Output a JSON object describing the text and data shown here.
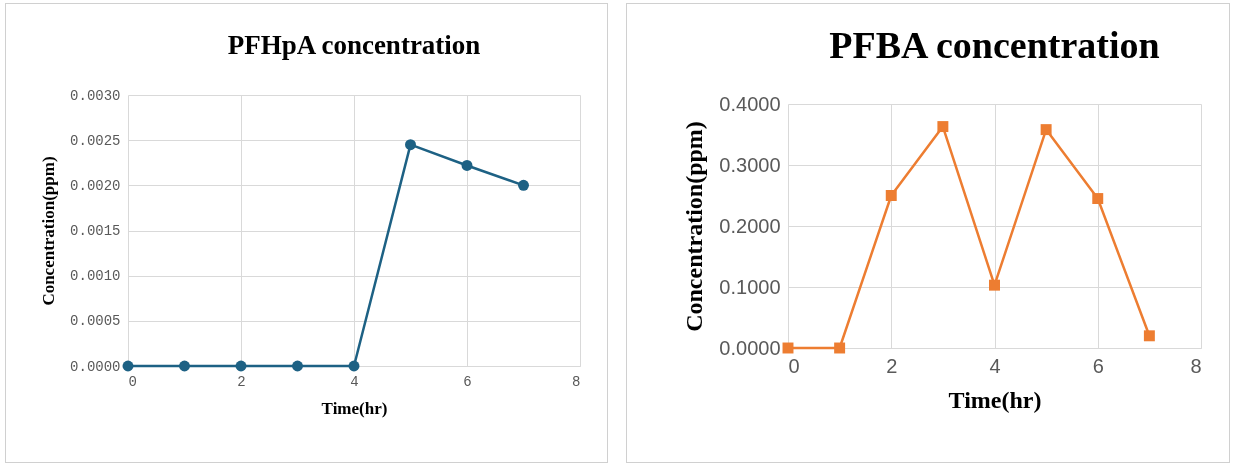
{
  "chart_data": [
    {
      "type": "line",
      "title": "PFHpA concentration",
      "xlabel": "Time(hr)",
      "ylabel": "Concentration(ppm)",
      "x": [
        0,
        1,
        2,
        3,
        4,
        5,
        6,
        7
      ],
      "series": [
        {
          "color": "#1d6184",
          "values": [
            0,
            0,
            0,
            0,
            0,
            0.00245,
            0.00222,
            0.002
          ]
        }
      ],
      "xlim": [
        0,
        8
      ],
      "xticks": [
        0,
        2,
        4,
        6,
        8
      ],
      "ylim": [
        0,
        0.003
      ],
      "yticks": [
        {
          "value": 0,
          "label": "0.0000"
        },
        {
          "value": 0.0005,
          "label": "0.0005"
        },
        {
          "value": 0.001,
          "label": "0.0010"
        },
        {
          "value": 0.0015,
          "label": "0.0015"
        },
        {
          "value": 0.002,
          "label": "0.0020"
        },
        {
          "value": 0.0025,
          "label": "0.0025"
        },
        {
          "value": 0.003,
          "label": "0.0030"
        }
      ],
      "grid": true,
      "marker": "circle",
      "line_style": "solid"
    },
    {
      "type": "line",
      "title": "PFBA concentration",
      "xlabel": "Time(hr)",
      "ylabel": "Concentration(ppm)",
      "x": [
        0,
        1,
        2,
        3,
        4,
        5,
        6,
        7
      ],
      "series": [
        {
          "color": "#ed7d31",
          "values": [
            0,
            0,
            0.25,
            0.363,
            0.103,
            0.358,
            0.245,
            0.02
          ]
        }
      ],
      "xlim": [
        0,
        8
      ],
      "xticks": [
        0,
        2,
        4,
        6,
        8
      ],
      "ylim": [
        0,
        0.4
      ],
      "yticks": [
        {
          "value": 0,
          "label": "0.0000"
        },
        {
          "value": 0.1,
          "label": "0.1000"
        },
        {
          "value": 0.2,
          "label": "0.2000"
        },
        {
          "value": 0.3,
          "label": "0.3000"
        },
        {
          "value": 0.4,
          "label": "0.4000"
        }
      ],
      "grid": true,
      "marker": "square",
      "line_style": "solid"
    }
  ]
}
